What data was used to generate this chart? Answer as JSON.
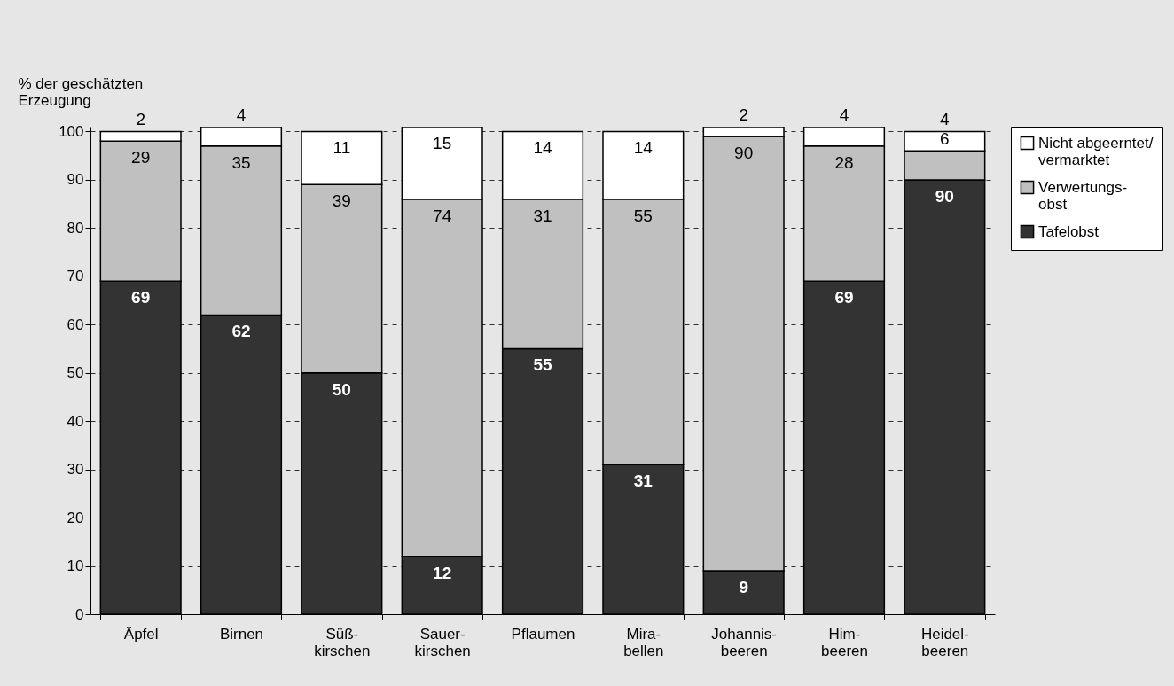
{
  "chart_data": {
    "type": "bar",
    "stacked": true,
    "ylabel": "% der geschätzten\nErzeugung",
    "categories": [
      "Äpfel",
      "Birnen",
      "Süß-\nkirschen",
      "Sauer-\nkirschen",
      "Pflaumen",
      "Mira-\nbellen",
      "Johannis-\nbeeren",
      "Him-\nbeeren",
      "Heidel-\nbeeren"
    ],
    "series": [
      {
        "name": "Tafelobst",
        "color": "#333333",
        "values": [
          69,
          62,
          50,
          12,
          55,
          31,
          9,
          69,
          90
        ]
      },
      {
        "name": "Verwertungs-\nobst",
        "color": "#c0c0c0",
        "values": [
          29,
          35,
          39,
          74,
          31,
          55,
          90,
          28,
          6
        ]
      },
      {
        "name": "Nicht abgeerntet/\nvermarktet",
        "color": "#ffffff",
        "values": [
          2,
          4,
          11,
          15,
          14,
          14,
          2,
          4,
          4
        ]
      }
    ],
    "ylim": [
      0,
      101
    ],
    "yticks": [
      0,
      10,
      20,
      30,
      40,
      50,
      60,
      70,
      80,
      90,
      100
    ],
    "grid": "y",
    "legend": "right",
    "data_labels": true
  }
}
